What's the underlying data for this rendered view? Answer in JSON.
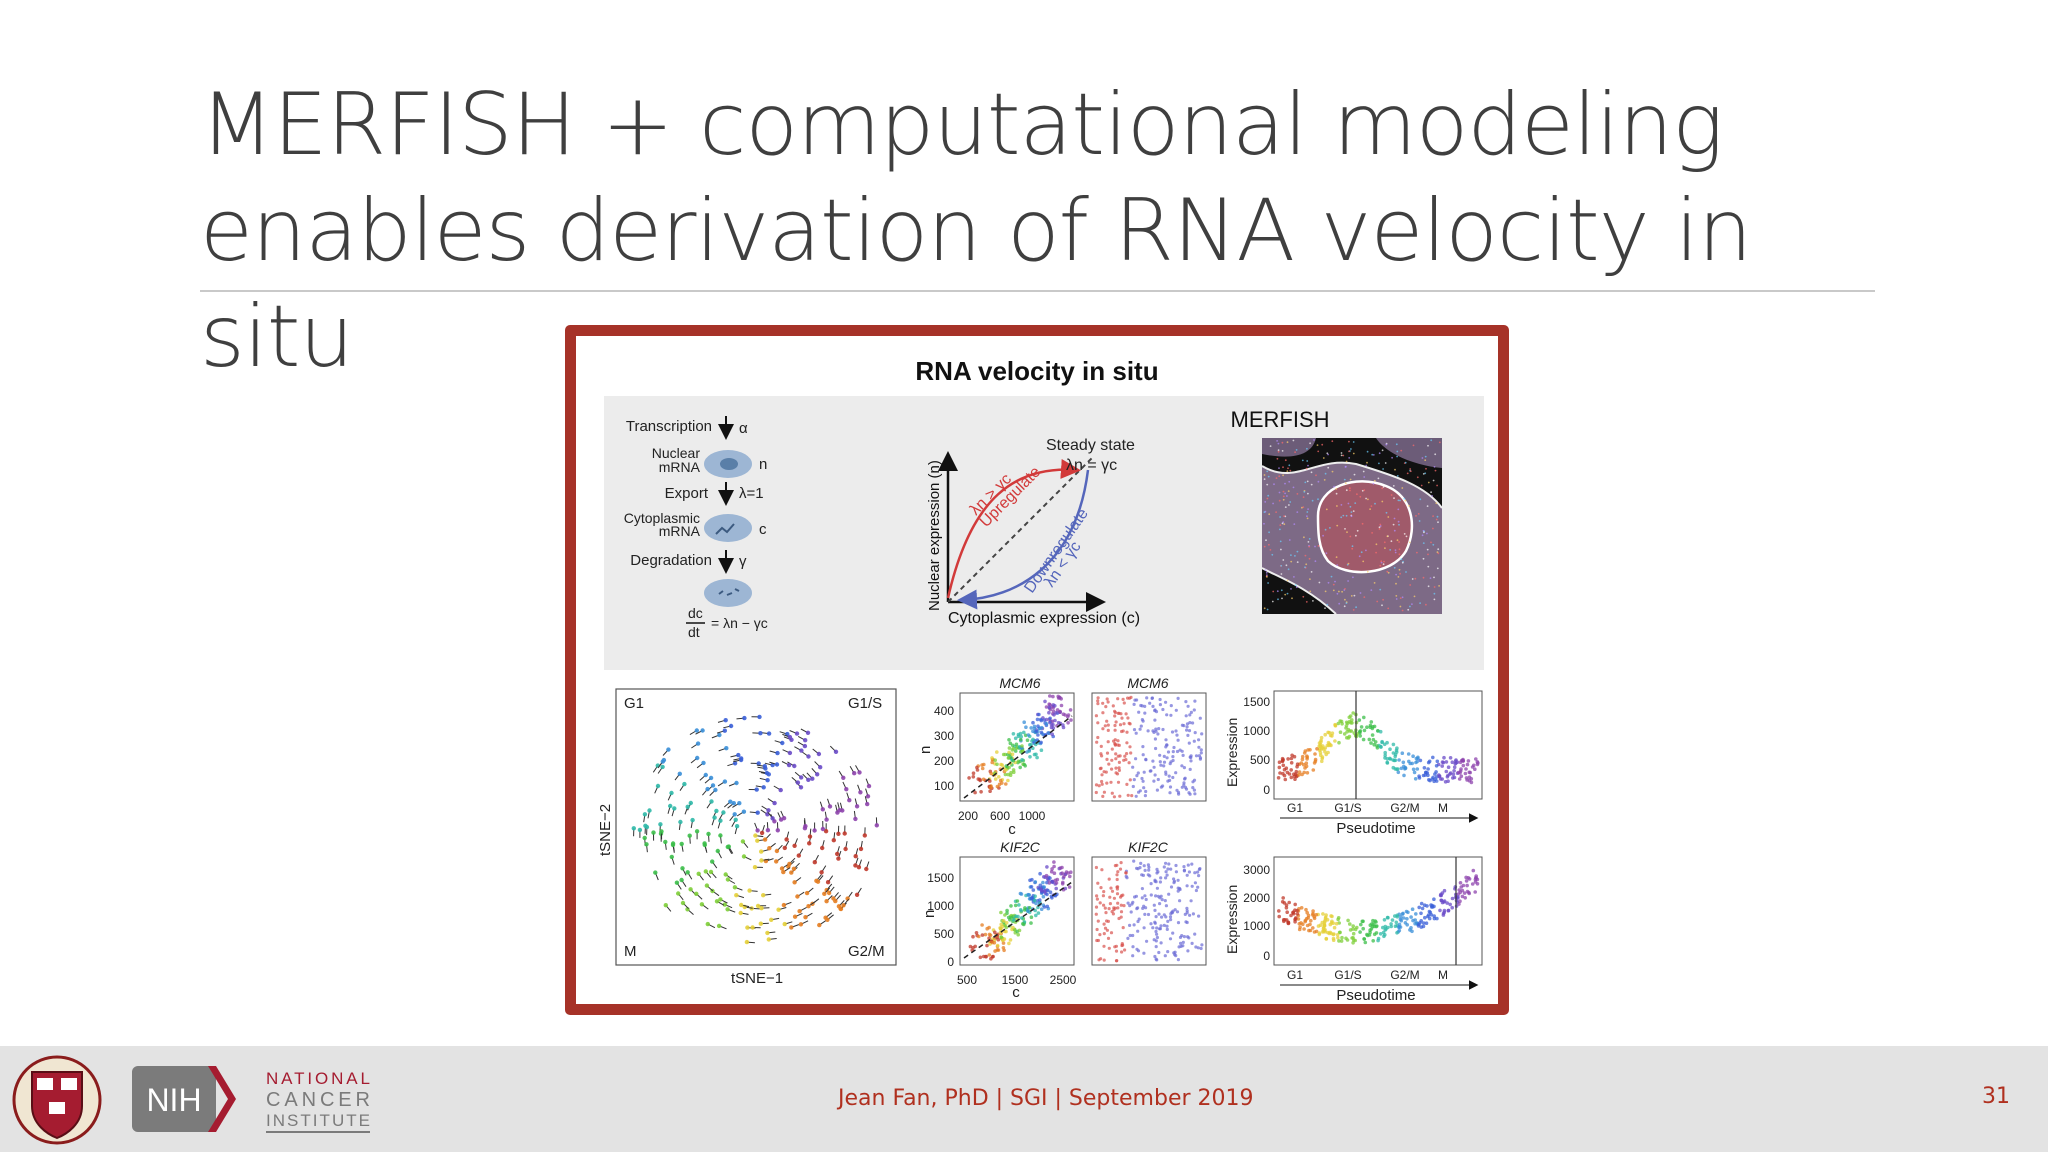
{
  "slide": {
    "title_line1": "MERFISH + computational modeling",
    "title_line2": "enables derivation of RNA velocity in situ",
    "footer": "Jean Fan, PhD | SGI | September 2019",
    "page_number": "31"
  },
  "figure": {
    "title": "RNA velocity in situ",
    "schematic": {
      "transcription": "Transcription",
      "alpha": "α",
      "nuclear_l1": "Nuclear",
      "nuclear_l2": "mRNA",
      "n": "n",
      "export": "Export",
      "lambda": "λ=1",
      "cyto_l1": "Cytoplasmic",
      "cyto_l2": "mRNA",
      "c": "c",
      "degradation": "Degradation",
      "gamma": "γ",
      "eq_num": "dc",
      "eq_den": "dt",
      "eq_rhs": "= λn − γc"
    },
    "phase": {
      "ylabel": "Nuclear expression (n)",
      "xlabel": "Cytoplasmic expression (c)",
      "steady_l1": "Steady state",
      "steady_l2": "λn = γc",
      "up_cond": "λn > γc",
      "up_label": "Upregulate",
      "down_label": "Downregulate",
      "down_cond": "λn < γc"
    },
    "merfish_title": "MERFISH",
    "tsne": {
      "g1": "G1",
      "g1s": "G1/S",
      "m": "M",
      "g2m": "G2/M",
      "xlabel": "tSNE−1",
      "ylabel": "tSNE−2"
    },
    "mcm6_scatter": {
      "title": "MCM6",
      "ylabel": "n",
      "xlabel": "c",
      "yticks": [
        "400",
        "300",
        "200",
        "100"
      ],
      "xticks": [
        "200",
        "600",
        "1000"
      ]
    },
    "mcm6_cells": {
      "title": "MCM6"
    },
    "mcm6_pseudo": {
      "ylabel": "Expression",
      "yticks": [
        "1500",
        "1000",
        "500",
        "0"
      ],
      "xticks": [
        "G1",
        "G1/S",
        "G2/M",
        "M"
      ],
      "xlabel": "Pseudotime"
    },
    "kif2c_scatter": {
      "title": "KIF2C",
      "ylabel": "n",
      "xlabel": "c",
      "yticks": [
        "1500",
        "1000",
        "500",
        "0"
      ],
      "xticks": [
        "500",
        "1500",
        "2500"
      ]
    },
    "kif2c_cells": {
      "title": "KIF2C"
    },
    "kif2c_pseudo": {
      "ylabel": "Expression",
      "yticks": [
        "3000",
        "2000",
        "1000",
        "0"
      ],
      "xticks": [
        "G1",
        "G1/S",
        "G2/M",
        "M"
      ],
      "xlabel": "Pseudotime"
    }
  },
  "colors": {
    "accent": "#a63228",
    "footer_text": "#b0301f"
  },
  "logos": {
    "nih": "NIH",
    "nci_l1": "NATIONAL",
    "nci_l2": "CANCER",
    "nci_l3": "INSTITUTE"
  }
}
